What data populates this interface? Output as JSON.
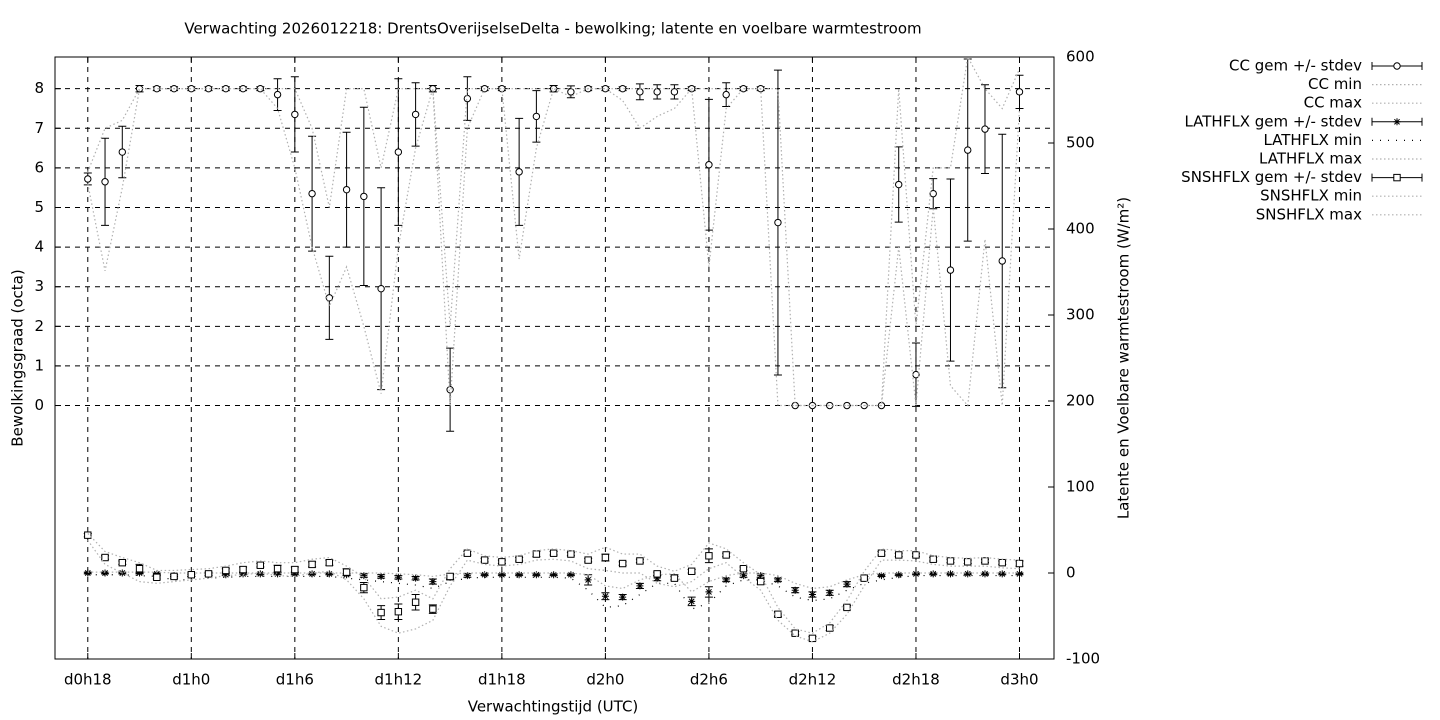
{
  "chart_data": {
    "type": "line",
    "title": "Verwachting 2026012218: DrentsOverijselseDelta - bewolking; latente en voelbare warmtestroom",
    "xlabel": "Verwachtingstijd (UTC)",
    "ylabel": "Bewolkingsgraad (octa)",
    "y2label": "Latente en Voelbare warmtestroom (W/m²)",
    "grid": true,
    "legend": "outside-right",
    "xlim": [
      16.1,
      74
    ],
    "xticks": [
      {
        "value": 18,
        "label": "d0h18"
      },
      {
        "value": 24,
        "label": "d1h0"
      },
      {
        "value": 30,
        "label": "d1h6"
      },
      {
        "value": 36,
        "label": "d1h12"
      },
      {
        "value": 42,
        "label": "d1h18"
      },
      {
        "value": 48,
        "label": "d2h0"
      },
      {
        "value": 54,
        "label": "d2h6"
      },
      {
        "value": 60,
        "label": "d2h12"
      },
      {
        "value": 66,
        "label": "d2h18"
      },
      {
        "value": 72,
        "label": "d3h0"
      }
    ],
    "ylim": [
      -6.4,
      8.8
    ],
    "yticks": [
      0,
      1,
      2,
      3,
      4,
      5,
      6,
      7,
      8
    ],
    "y2lim": [
      -100,
      600
    ],
    "y2ticks": [
      -100,
      0,
      100,
      200,
      300,
      400,
      500,
      600
    ],
    "x": [
      18,
      19,
      20,
      21,
      22,
      23,
      24,
      25,
      26,
      27,
      28,
      29,
      30,
      31,
      32,
      33,
      34,
      35,
      36,
      37,
      38,
      39,
      40,
      41,
      42,
      43,
      44,
      45,
      46,
      47,
      48,
      49,
      50,
      51,
      52,
      53,
      54,
      55,
      56,
      57,
      58,
      59,
      60,
      61,
      62,
      63,
      64,
      65,
      66,
      67,
      68,
      69,
      70,
      71,
      72
    ],
    "series": [
      {
        "name": "CC gem +/- stdev",
        "color": "#000000",
        "style": "errorbars",
        "marker": "circle",
        "values": [
          5.72,
          5.65,
          6.4,
          8,
          8,
          8,
          8,
          8,
          8,
          8,
          8,
          7.85,
          7.35,
          5.35,
          2.72,
          5.45,
          5.28,
          2.95,
          6.4,
          7.35,
          8,
          0.4,
          7.75,
          8,
          8,
          5.9,
          7.3,
          8,
          7.92,
          8,
          8,
          8,
          7.92,
          7.92,
          7.92,
          8,
          6.08,
          7.85,
          8,
          8,
          4.62,
          0,
          0,
          0,
          0,
          0,
          0,
          5.58,
          0.78,
          5.35,
          3.42,
          6.45,
          6.98,
          3.65,
          7.92
        ],
        "errors": [
          0.15,
          1.1,
          0.65,
          0.08,
          0.05,
          0.05,
          0.05,
          0.05,
          0.05,
          0.05,
          0.05,
          0.4,
          0.95,
          1.45,
          1.05,
          1.45,
          2.25,
          2.55,
          1.85,
          0.8,
          0.08,
          1.05,
          0.55,
          0.05,
          0.05,
          1.35,
          0.65,
          0.08,
          0.15,
          0.05,
          0.05,
          0.05,
          0.2,
          0.18,
          0.18,
          0.05,
          1.65,
          0.3,
          0.05,
          0.05,
          3.85,
          0,
          0,
          0,
          0,
          0,
          0,
          0.95,
          0.8,
          0.38,
          2.3,
          2.3,
          1.12,
          3.2,
          0.42
        ]
      },
      {
        "name": "CC min",
        "color": "#b0b0b0",
        "style": "dotted",
        "values": [
          5.6,
          3.4,
          5.5,
          8,
          8,
          8,
          8,
          8,
          8,
          8,
          8,
          7.5,
          6,
          4,
          2.5,
          3.5,
          2,
          0.3,
          4,
          6.5,
          8,
          0,
          7,
          8,
          8,
          3.7,
          6.5,
          8,
          7.8,
          8,
          8,
          7.7,
          7,
          7.3,
          7.5,
          8,
          3.5,
          7.5,
          8,
          8,
          0,
          0,
          0,
          0,
          0,
          0,
          0,
          4,
          0,
          5,
          0.5,
          0,
          4.2,
          0,
          7.5
        ]
      },
      {
        "name": "CC max",
        "color": "#b0b0b0",
        "style": "dotted",
        "values": [
          5.9,
          7,
          7.2,
          8,
          8,
          8,
          8,
          8,
          8,
          8,
          8,
          8,
          8,
          7,
          5,
          8,
          8,
          6,
          8,
          8,
          8,
          2,
          8,
          8,
          8,
          8,
          8,
          8,
          8,
          8,
          8,
          8,
          8,
          8,
          8,
          8,
          8,
          8,
          8,
          8,
          8,
          0,
          0,
          0,
          0,
          0,
          0,
          8,
          2,
          6,
          6,
          8.8,
          8,
          7.5,
          8.5
        ]
      },
      {
        "name": "LATHFLX gem +/- stdev",
        "color": "#000000",
        "style": "errorbars",
        "marker": "star",
        "axis": "y2",
        "values": [
          0,
          0,
          0,
          0,
          -1,
          -3,
          -3,
          -2,
          -2,
          -1,
          -1,
          -1,
          -1,
          -1,
          -1,
          -2,
          -3,
          -4,
          -5,
          -6,
          -10,
          -5,
          -3,
          -2,
          -2,
          -2,
          -2,
          -2,
          -2,
          -8,
          -27,
          -28,
          -15,
          -6,
          -5,
          -33,
          -22,
          -8,
          -3,
          -3,
          -8,
          -20,
          -25,
          -23,
          -13,
          -6,
          -3,
          -2,
          -1,
          -1,
          -1,
          -1,
          -1,
          -1,
          -1
        ],
        "errors": [
          1,
          1,
          1,
          1,
          1,
          1,
          1,
          1,
          1,
          1,
          1,
          1,
          1,
          1,
          1,
          1,
          2,
          2,
          2,
          2,
          3,
          3,
          2,
          1,
          1,
          1,
          1,
          1,
          1,
          6,
          4,
          3,
          3,
          3,
          3,
          5,
          6,
          2,
          2,
          2,
          2,
          3,
          3,
          3,
          3,
          2,
          1,
          1,
          1,
          1,
          1,
          1,
          1,
          1,
          1
        ]
      },
      {
        "name": "LATHFLX min",
        "color": "#000000",
        "style": "sparse",
        "axis": "y2",
        "values": [
          -2,
          -2,
          -2,
          -3,
          -4,
          -8,
          -8,
          -6,
          -5,
          -4,
          -4,
          -4,
          -4,
          -4,
          -4,
          -6,
          -8,
          -10,
          -12,
          -14,
          -18,
          -10,
          -6,
          -5,
          -5,
          -5,
          -5,
          -5,
          -6,
          -20,
          -40,
          -38,
          -25,
          -12,
          -12,
          -42,
          -35,
          -15,
          -8,
          -8,
          -15,
          -28,
          -32,
          -30,
          -20,
          -12,
          -8,
          -5,
          -3,
          -3,
          -3,
          -3,
          -3,
          -3,
          -3
        ]
      },
      {
        "name": "LATHFLX max",
        "color": "#b0b0b0",
        "style": "dotted",
        "axis": "y2",
        "values": [
          1,
          1,
          1,
          1,
          1,
          0,
          0,
          0,
          0,
          0,
          0,
          0,
          0,
          0,
          0,
          0,
          0,
          0,
          -1,
          -2,
          -4,
          -1,
          0,
          0,
          0,
          0,
          0,
          0,
          0,
          -2,
          -15,
          -18,
          -8,
          -2,
          -1,
          -22,
          -10,
          -3,
          0,
          0,
          -3,
          -12,
          -18,
          -16,
          -8,
          -2,
          0,
          0,
          0,
          0,
          0,
          0,
          0,
          0,
          0
        ]
      },
      {
        "name": "SNSHFLX gem +/- stdev",
        "color": "#000000",
        "style": "errorbars",
        "marker": "square",
        "axis": "y2",
        "values": [
          44,
          18,
          12,
          5,
          -5,
          -4,
          -2,
          -1,
          3,
          4,
          9,
          5,
          4,
          10,
          12,
          1,
          -17,
          -46,
          -45,
          -34,
          -42,
          -4,
          23,
          15,
          13,
          16,
          22,
          23,
          22,
          15,
          18,
          11,
          14,
          -1,
          -6,
          2,
          20,
          21,
          5,
          -10,
          -48,
          -70,
          -76,
          -64,
          -40,
          -6,
          23,
          21,
          21,
          16,
          14,
          13,
          14,
          12,
          11
        ],
        "errors": [
          2,
          2,
          2,
          5,
          2,
          2,
          2,
          2,
          2,
          3,
          2,
          4,
          3,
          3,
          3,
          4,
          6,
          8,
          9,
          9,
          5,
          3,
          2,
          2,
          2,
          2,
          3,
          2,
          2,
          2,
          4,
          2,
          2,
          2,
          2,
          2,
          8,
          2,
          2,
          3,
          3,
          2,
          2,
          3,
          2,
          2,
          2,
          2,
          2,
          2,
          2,
          2,
          2,
          2,
          3
        ]
      },
      {
        "name": "SNSHFLX min",
        "color": "#b0b0b0",
        "style": "dotted",
        "axis": "y2",
        "values": [
          38,
          10,
          0,
          -10,
          -12,
          -10,
          -8,
          -6,
          -3,
          -2,
          0,
          -3,
          -4,
          0,
          2,
          -8,
          -30,
          -62,
          -70,
          -65,
          -55,
          -15,
          15,
          10,
          8,
          10,
          15,
          16,
          14,
          5,
          3,
          0,
          0,
          -12,
          -16,
          -10,
          5,
          12,
          -5,
          -20,
          -55,
          -73,
          -80,
          -70,
          -48,
          -15,
          15,
          15,
          14,
          10,
          8,
          8,
          8,
          6,
          5
        ]
      },
      {
        "name": "SNSHFLX max",
        "color": "#b0b0b0",
        "style": "dotted",
        "axis": "y2",
        "values": [
          46,
          25,
          18,
          12,
          3,
          3,
          4,
          5,
          8,
          12,
          14,
          12,
          12,
          16,
          18,
          8,
          -5,
          -30,
          -28,
          -20,
          -30,
          5,
          28,
          20,
          18,
          20,
          26,
          28,
          26,
          22,
          30,
          22,
          22,
          8,
          2,
          10,
          35,
          28,
          12,
          -2,
          -40,
          -65,
          -70,
          -58,
          -32,
          2,
          28,
          26,
          26,
          20,
          18,
          17,
          18,
          16,
          15
        ]
      }
    ]
  }
}
